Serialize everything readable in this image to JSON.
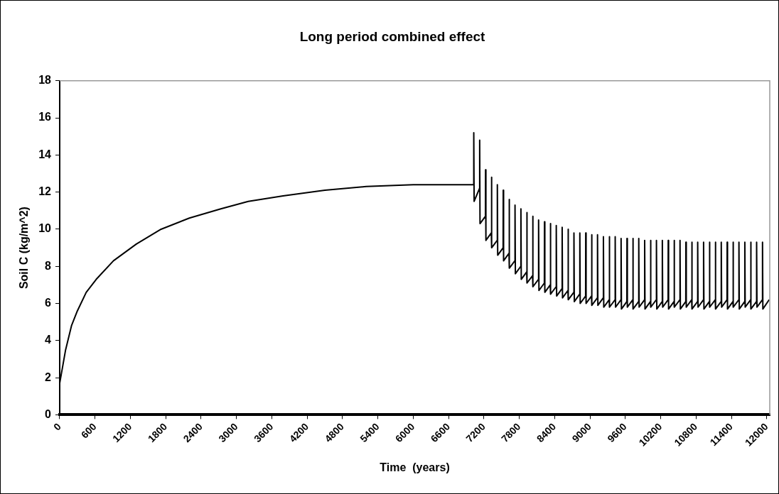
{
  "chart_data": {
    "type": "line",
    "title": "Long period combined effect",
    "xlabel": "Time  (years)",
    "ylabel": "Soil C (kg/m^2)",
    "color": "#000000",
    "x": [
      0,
      100,
      200,
      300,
      450,
      620,
      913,
      1300,
      1720,
      2200,
      2734,
      3200,
      3790,
      4500,
      5200,
      6000,
      6970,
      7025,
      7027,
      7033,
      7125,
      7127,
      7133,
      7225,
      7227,
      7233,
      7325,
      7327,
      7333,
      7425,
      7427,
      7433,
      7525,
      7527,
      7533,
      7625,
      7627,
      7633,
      7725,
      7727,
      7733,
      7825,
      7827,
      7833,
      7925,
      7927,
      7933,
      8025,
      8027,
      8033,
      8125,
      8127,
      8133,
      8225,
      8227,
      8233,
      8325,
      8327,
      8333,
      8425,
      8427,
      8433,
      8525,
      8527,
      8533,
      8625,
      8627,
      8633,
      8725,
      8727,
      8733,
      8825,
      8827,
      8833,
      8925,
      8927,
      8933,
      9025,
      9027,
      9033,
      9125,
      9127,
      9133,
      9225,
      9227,
      9233,
      9325,
      9327,
      9333,
      9425,
      9427,
      9433,
      9525,
      9527,
      9533,
      9625,
      9627,
      9633,
      9725,
      9727,
      9733,
      9825,
      9827,
      9833,
      9925,
      9927,
      9933,
      10025,
      10027,
      10033,
      10125,
      10127,
      10133,
      10225,
      10227,
      10233,
      10325,
      10327,
      10333,
      10425,
      10427,
      10433,
      10525,
      10527,
      10533,
      10625,
      10627,
      10633,
      10725,
      10727,
      10733,
      10825,
      10827,
      10833,
      10925,
      10927,
      10933,
      11025,
      11027,
      11033,
      11125,
      11127,
      11133,
      11225,
      11227,
      11233,
      11325,
      11327,
      11333,
      11425,
      11427,
      11433,
      11525,
      11527,
      11533,
      11625,
      11627,
      11633,
      11725,
      11727,
      11733,
      11825,
      11827,
      11833,
      11925,
      11927,
      11933,
      12040
    ],
    "values": [
      1.7,
      3.5,
      4.8,
      5.6,
      6.6,
      7.3,
      8.3,
      9.2,
      10.0,
      10.6,
      11.1,
      11.5,
      11.8,
      12.1,
      12.3,
      12.4,
      12.4,
      12.4,
      15.2,
      11.5,
      12.2,
      14.8,
      10.3,
      10.7,
      13.2,
      9.4,
      9.8,
      12.8,
      9.0,
      9.4,
      12.4,
      8.6,
      9.0,
      12.1,
      8.3,
      8.7,
      11.6,
      7.9,
      8.3,
      11.3,
      7.6,
      8.0,
      11.1,
      7.3,
      7.7,
      10.9,
      7.1,
      7.5,
      10.7,
      6.9,
      7.3,
      10.5,
      6.7,
      7.1,
      10.4,
      6.6,
      7.0,
      10.3,
      6.5,
      6.9,
      10.2,
      6.4,
      6.8,
      10.1,
      6.3,
      6.7,
      10.0,
      6.2,
      6.6,
      9.8,
      6.1,
      6.5,
      9.8,
      6.0,
      6.4,
      9.8,
      6.0,
      6.4,
      9.7,
      5.9,
      6.3,
      9.7,
      5.9,
      6.3,
      9.6,
      5.8,
      6.2,
      9.6,
      5.8,
      6.2,
      9.6,
      5.8,
      6.2,
      9.5,
      5.7,
      6.1,
      9.5,
      5.8,
      6.2,
      9.5,
      5.7,
      6.1,
      9.5,
      5.8,
      6.2,
      9.4,
      5.7,
      6.1,
      9.4,
      5.8,
      6.2,
      9.4,
      5.7,
      6.1,
      9.4,
      5.8,
      6.2,
      9.4,
      5.7,
      6.1,
      9.4,
      5.8,
      6.2,
      9.4,
      5.7,
      6.1,
      9.3,
      5.8,
      6.2,
      9.3,
      5.7,
      6.1,
      9.3,
      5.8,
      6.2,
      9.3,
      5.7,
      6.1,
      9.3,
      5.8,
      6.2,
      9.3,
      5.7,
      6.1,
      9.3,
      5.8,
      6.2,
      9.3,
      5.7,
      6.1,
      9.3,
      5.8,
      6.2,
      9.3,
      5.7,
      6.1,
      9.3,
      5.8,
      6.2,
      9.3,
      5.7,
      6.1,
      9.3,
      5.8,
      6.2,
      9.3,
      5.7,
      6.2
    ],
    "xlim": [
      0,
      12050
    ],
    "xticks": [
      0,
      600,
      1200,
      1800,
      2400,
      3000,
      3600,
      4200,
      4800,
      5400,
      6000,
      6600,
      7200,
      7800,
      8400,
      9000,
      9600,
      10200,
      10800,
      11400,
      12000
    ],
    "ylim": [
      0,
      18
    ],
    "yticks": [
      0,
      2,
      4,
      6,
      8,
      10,
      12,
      14,
      16,
      18
    ]
  }
}
